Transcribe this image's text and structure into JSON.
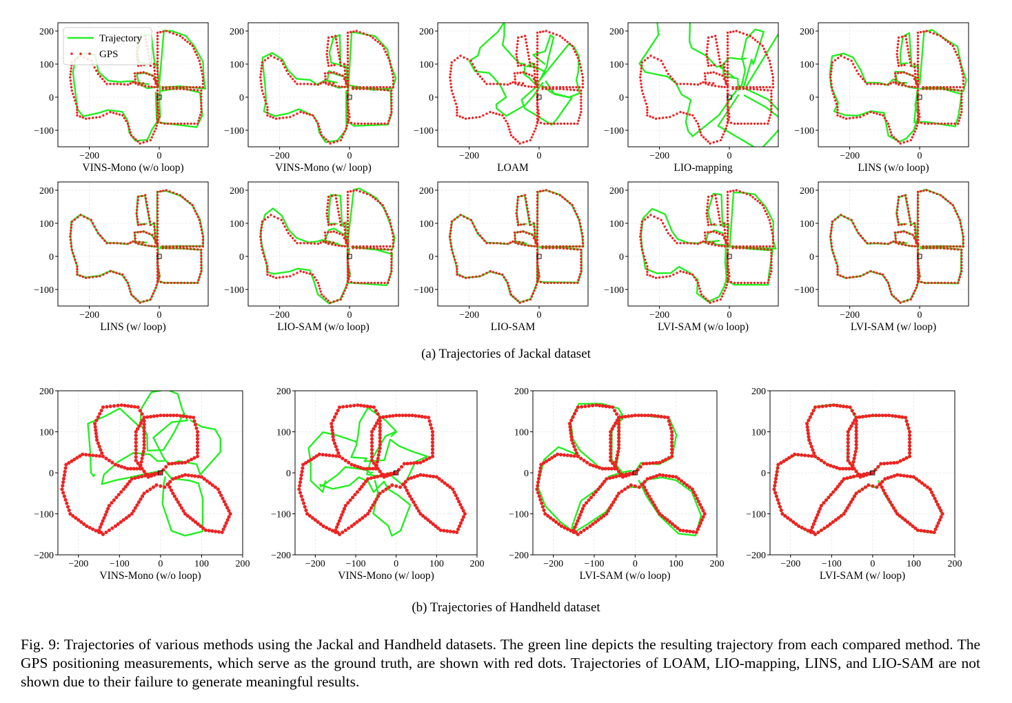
{
  "colors": {
    "trajectory": "#22ee22",
    "gps": "#ee2222",
    "origin": "#000000"
  },
  "legend": {
    "trajectory_label": "Trajectory",
    "gps_label": "GPS"
  },
  "section_a": {
    "caption": "(a) Trajectories of Jackal dataset"
  },
  "section_b": {
    "caption": "(b) Trajectories of Handheld dataset"
  },
  "figure_caption": "Fig. 9: Trajectories of various methods using the Jackal and Handheld datasets. The green line depicts the resulting trajectory from each compared method. The GPS positioning measurements, which serve as the ground truth, are shown with red dots. Trajectories of LOAM, LIO-mapping, LINS, and LIO-SAM are not shown due to their failure to generate meaningful results.",
  "chart_data": [
    {
      "type": "line+scatter",
      "dataset": "Jackal",
      "label": "VINS-Mono (w/o loop)",
      "xlim": [
        -290,
        140
      ],
      "ylim": [
        -150,
        225
      ],
      "xticks": [
        -200,
        0
      ],
      "yticks": [
        -100,
        0,
        100,
        200
      ],
      "series": [
        {
          "name": "Trajectory",
          "quality": "drift"
        },
        {
          "name": "GPS"
        }
      ],
      "legend": "upper-left"
    },
    {
      "type": "line+scatter",
      "dataset": "Jackal",
      "label": "VINS-Mono (w/ loop)",
      "xlim": [
        -290,
        140
      ],
      "ylim": [
        -150,
        225
      ],
      "xticks": [
        -200,
        0
      ],
      "yticks": [
        -100,
        0,
        100,
        200
      ],
      "series": [
        {
          "name": "Trajectory",
          "quality": "drift"
        },
        {
          "name": "GPS"
        }
      ]
    },
    {
      "type": "line+scatter",
      "dataset": "Jackal",
      "label": "LOAM",
      "xlim": [
        -290,
        140
      ],
      "ylim": [
        -150,
        225
      ],
      "xticks": [
        -200,
        0
      ],
      "yticks": [
        -100,
        0,
        100,
        200
      ],
      "series": [
        {
          "name": "Trajectory",
          "quality": "fail"
        },
        {
          "name": "GPS"
        }
      ]
    },
    {
      "type": "line+scatter",
      "dataset": "Jackal",
      "label": "LIO-mapping",
      "xlim": [
        -290,
        140
      ],
      "ylim": [
        -150,
        225
      ],
      "xticks": [
        -200,
        0
      ],
      "yticks": [
        -100,
        0,
        100,
        200
      ],
      "series": [
        {
          "name": "Trajectory",
          "quality": "fail"
        },
        {
          "name": "GPS"
        }
      ]
    },
    {
      "type": "line+scatter",
      "dataset": "Jackal",
      "label": "LINS (w/o loop)",
      "xlim": [
        -290,
        140
      ],
      "ylim": [
        -150,
        225
      ],
      "xticks": [
        -200,
        0
      ],
      "yticks": [
        -100,
        0,
        100,
        200
      ],
      "series": [
        {
          "name": "Trajectory",
          "quality": "drift"
        },
        {
          "name": "GPS"
        }
      ]
    },
    {
      "type": "line+scatter",
      "dataset": "Jackal",
      "label": "LINS (w/ loop)",
      "xlim": [
        -290,
        140
      ],
      "ylim": [
        -150,
        225
      ],
      "xticks": [
        -200,
        0
      ],
      "yticks": [
        -100,
        0,
        100,
        200
      ],
      "series": [
        {
          "name": "Trajectory",
          "quality": "good"
        },
        {
          "name": "GPS"
        }
      ]
    },
    {
      "type": "line+scatter",
      "dataset": "Jackal",
      "label": "LIO-SAM (w/o loop)",
      "xlim": [
        -290,
        140
      ],
      "ylim": [
        -150,
        225
      ],
      "xticks": [
        -200,
        0
      ],
      "yticks": [
        -100,
        0,
        100,
        200
      ],
      "series": [
        {
          "name": "Trajectory",
          "quality": "drift"
        },
        {
          "name": "GPS"
        }
      ]
    },
    {
      "type": "line+scatter",
      "dataset": "Jackal",
      "label": "LIO-SAM",
      "xlim": [
        -290,
        140
      ],
      "ylim": [
        -150,
        225
      ],
      "xticks": [
        -200,
        0
      ],
      "yticks": [
        -100,
        0,
        100,
        200
      ],
      "series": [
        {
          "name": "Trajectory",
          "quality": "good"
        },
        {
          "name": "GPS"
        }
      ]
    },
    {
      "type": "line+scatter",
      "dataset": "Jackal",
      "label": "LVI-SAM (w/o loop)",
      "xlim": [
        -290,
        140
      ],
      "ylim": [
        -150,
        225
      ],
      "xticks": [
        -200,
        0
      ],
      "yticks": [
        -100,
        0,
        100,
        200
      ],
      "series": [
        {
          "name": "Trajectory",
          "quality": "drift"
        },
        {
          "name": "GPS"
        }
      ]
    },
    {
      "type": "line+scatter",
      "dataset": "Jackal",
      "label": "LVI-SAM (w/ loop)",
      "xlim": [
        -290,
        140
      ],
      "ylim": [
        -150,
        225
      ],
      "xticks": [
        -200,
        0
      ],
      "yticks": [
        -100,
        0,
        100,
        200
      ],
      "series": [
        {
          "name": "Trajectory",
          "quality": "good"
        },
        {
          "name": "GPS"
        }
      ]
    },
    {
      "type": "line+scatter",
      "dataset": "Handheld",
      "label": "VINS-Mono (w/o loop)",
      "xlim": [
        -250,
        200
      ],
      "ylim": [
        -200,
        200
      ],
      "xticks": [
        -200,
        -100,
        0,
        100,
        200
      ],
      "yticks": [
        -200,
        -100,
        0,
        100,
        200
      ],
      "series": [
        {
          "name": "Trajectory",
          "quality": "fail"
        },
        {
          "name": "GPS"
        }
      ]
    },
    {
      "type": "line+scatter",
      "dataset": "Handheld",
      "label": "VINS-Mono (w/ loop)",
      "xlim": [
        -250,
        200
      ],
      "ylim": [
        -200,
        200
      ],
      "xticks": [
        -200,
        -100,
        0,
        100,
        200
      ],
      "yticks": [
        -200,
        -100,
        0,
        100,
        200
      ],
      "series": [
        {
          "name": "Trajectory",
          "quality": "fail"
        },
        {
          "name": "GPS"
        }
      ]
    },
    {
      "type": "line+scatter",
      "dataset": "Handheld",
      "label": "LVI-SAM (w/o loop)",
      "xlim": [
        -250,
        200
      ],
      "ylim": [
        -200,
        200
      ],
      "xticks": [
        -200,
        -100,
        0,
        100,
        200
      ],
      "yticks": [
        -200,
        -100,
        0,
        100,
        200
      ],
      "series": [
        {
          "name": "Trajectory",
          "quality": "drift"
        },
        {
          "name": "GPS"
        }
      ]
    },
    {
      "type": "line+scatter",
      "dataset": "Handheld",
      "label": "LVI-SAM (w/ loop)",
      "xlim": [
        -250,
        200
      ],
      "ylim": [
        -200,
        200
      ],
      "xticks": [
        -200,
        -100,
        0,
        100,
        200
      ],
      "yticks": [
        -200,
        -100,
        0,
        100,
        200
      ],
      "series": [
        {
          "name": "Trajectory",
          "quality": "good"
        },
        {
          "name": "GPS"
        }
      ]
    }
  ]
}
